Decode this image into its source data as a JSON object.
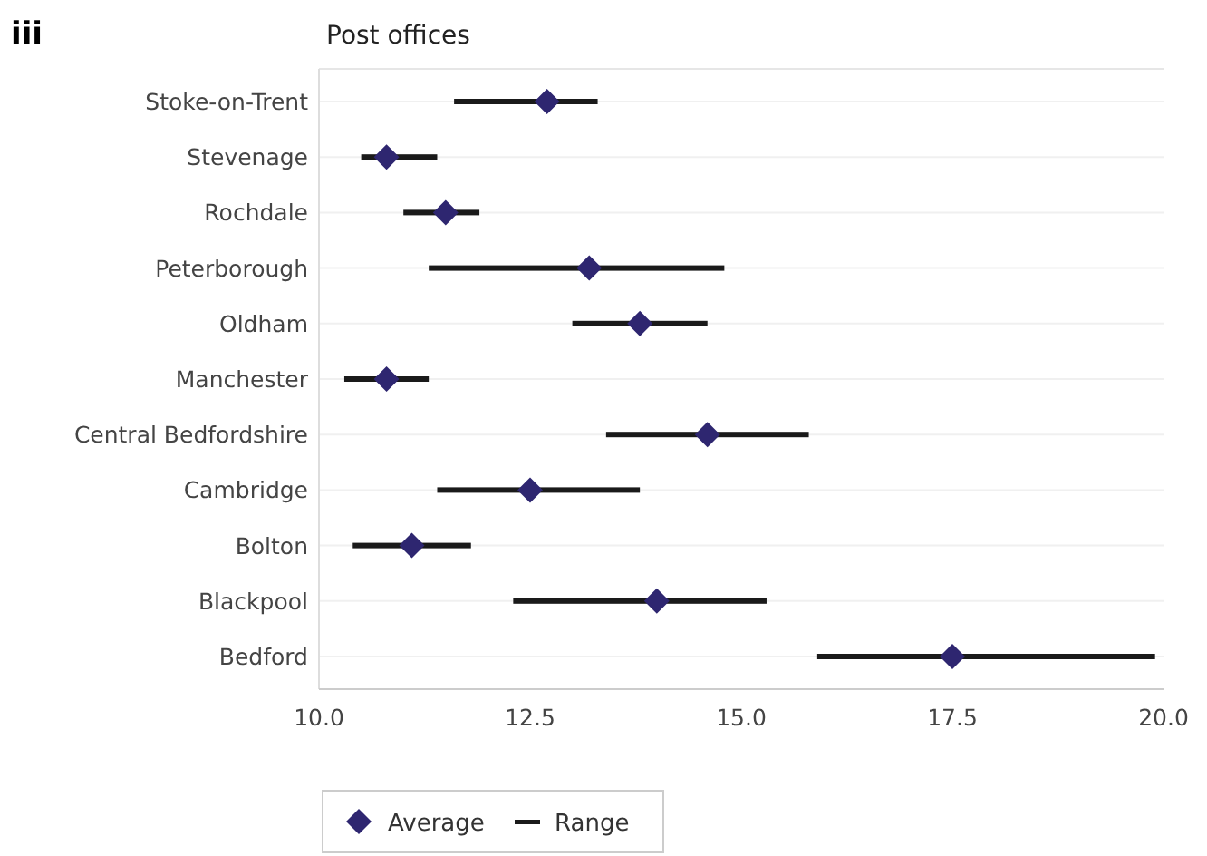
{
  "chart_data": {
    "type": "bar",
    "orientation": "horizontal",
    "title": "Post offices",
    "annotations": [
      "iii"
    ],
    "categories": [
      "Stoke-on-Trent",
      "Stevenage",
      "Rochdale",
      "Peterborough",
      "Oldham",
      "Manchester",
      "Central Bedfordshire",
      "Cambridge",
      "Bolton",
      "Blackpool",
      "Bedford"
    ],
    "series": [
      {
        "name": "Average",
        "type": "scatter",
        "marker": "diamond",
        "color": "#2e2670",
        "values": [
          12.7,
          10.8,
          11.5,
          13.2,
          13.8,
          10.8,
          14.6,
          12.5,
          11.1,
          14.0,
          17.5
        ]
      },
      {
        "name": "Range",
        "color": "#1a1a1a",
        "base": [
          11.6,
          10.5,
          11.0,
          11.3,
          13.0,
          10.3,
          13.4,
          11.4,
          10.4,
          12.3,
          15.9
        ],
        "values": [
          1.7,
          0.9,
          0.9,
          3.5,
          1.6,
          1.0,
          2.4,
          2.4,
          1.4,
          3.0,
          4.0
        ]
      }
    ],
    "xlim": [
      10,
      20
    ],
    "xticks": [
      {
        "value": 10,
        "label": "10.0"
      },
      {
        "value": 12.5,
        "label": "12.5"
      },
      {
        "value": 15,
        "label": "15.0"
      },
      {
        "value": 17.5,
        "label": "17.5"
      },
      {
        "value": 20,
        "label": "20.0"
      }
    ],
    "grid": "y",
    "legend": "bottom left"
  }
}
